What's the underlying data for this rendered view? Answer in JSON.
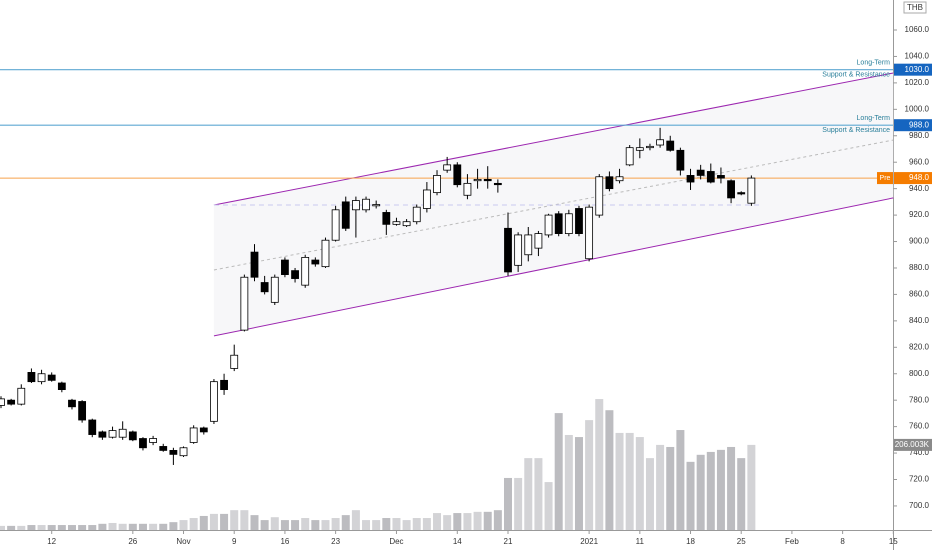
{
  "chart_data": {
    "type": "candlestick",
    "currency": "THB",
    "grid": false,
    "categories": [
      null,
      null,
      null,
      null,
      null,
      "12",
      null,
      null,
      null,
      null,
      null,
      null,
      null,
      "26",
      null,
      null,
      null,
      null,
      "Nov",
      null,
      null,
      null,
      null,
      "9",
      null,
      null,
      null,
      null,
      "16",
      null,
      null,
      null,
      null,
      "23",
      null,
      null,
      null,
      null,
      null,
      "Dec",
      null,
      null,
      null,
      null,
      null,
      "14",
      null,
      null,
      null,
      null,
      "21",
      null,
      null,
      null,
      null,
      null,
      null,
      null,
      "2021",
      null,
      null,
      null,
      null,
      "11",
      null,
      null,
      null,
      null,
      "18",
      null,
      null,
      null,
      null,
      "25",
      null,
      null,
      null,
      null,
      "Feb",
      null,
      null,
      null,
      null,
      "8",
      null,
      null,
      null,
      null,
      "15"
    ],
    "open": [
      776,
      780,
      777,
      801,
      794,
      799,
      793,
      780,
      779,
      765,
      756,
      752,
      752,
      756,
      751,
      748,
      745,
      742,
      738,
      748,
      759,
      764,
      795,
      804,
      833,
      892,
      869,
      854,
      886,
      878,
      867,
      886,
      881,
      901,
      930,
      924,
      924,
      927,
      922,
      913,
      912,
      915,
      925,
      937,
      954,
      958,
      935,
      946,
      947,
      944,
      910,
      882,
      890,
      895,
      905,
      921,
      906,
      925,
      887,
      920,
      949,
      946,
      958,
      969,
      971,
      973,
      976,
      969,
      950,
      954,
      953,
      950,
      946,
      937,
      929,
      null,
      null,
      null,
      null,
      null,
      null,
      null,
      null,
      null,
      null,
      null,
      null,
      null,
      null
    ],
    "high": [
      783,
      781,
      792,
      804,
      803,
      801,
      794,
      781,
      780,
      766,
      757,
      760,
      764,
      757,
      752,
      753,
      747,
      744,
      745,
      761,
      760,
      796,
      800,
      822,
      875,
      898,
      874,
      875,
      888,
      880,
      890,
      888,
      903,
      927,
      934,
      934,
      934,
      931,
      924,
      918,
      917,
      928,
      945,
      954,
      964,
      960,
      951,
      955,
      957,
      947,
      922,
      907,
      911,
      908,
      921,
      923,
      924,
      927,
      928,
      951,
      953,
      955,
      973,
      978,
      974,
      986,
      980,
      971,
      955,
      958,
      959,
      956,
      947,
      938,
      950,
      null,
      null,
      null,
      null,
      null,
      null,
      null,
      null,
      null,
      null,
      null,
      null,
      null,
      null
    ],
    "low": [
      774,
      776,
      776,
      793,
      792,
      794,
      786,
      773,
      763,
      752,
      750,
      751,
      750,
      749,
      742,
      746,
      741,
      731,
      737,
      747,
      754,
      762,
      784,
      802,
      832,
      870,
      860,
      852,
      873,
      869,
      865,
      881,
      880,
      900,
      908,
      903,
      922,
      925,
      905,
      912,
      911,
      913,
      922,
      935,
      952,
      941,
      932,
      940,
      940,
      937,
      874,
      877,
      885,
      889,
      903,
      904,
      904,
      904,
      885,
      918,
      938,
      944,
      957,
      963,
      969,
      971,
      968,
      950,
      939,
      947,
      944,
      944,
      929,
      935,
      927,
      null,
      null,
      null,
      null,
      null,
      null,
      null,
      null,
      null,
      null,
      null,
      null,
      null,
      null
    ],
    "close": [
      781,
      777,
      789,
      794,
      800,
      795,
      788,
      775,
      765,
      754,
      752,
      757,
      758,
      750,
      744,
      751,
      742,
      739,
      744,
      759,
      756,
      794,
      788,
      814,
      873,
      873,
      862,
      873,
      875,
      872,
      888,
      883,
      901,
      924,
      910,
      931,
      932,
      928,
      913,
      915,
      915,
      926,
      939,
      950,
      958,
      943,
      944,
      947,
      946,
      943,
      877,
      905,
      905,
      906,
      920,
      906,
      921,
      906,
      926,
      949,
      940,
      949,
      971,
      971,
      972,
      977,
      969,
      954,
      945,
      950,
      945,
      948,
      933,
      936,
      948,
      null,
      null,
      null,
      null,
      null,
      null,
      null,
      null,
      null,
      null,
      null,
      null,
      null,
      null
    ],
    "volume": [
      10,
      10,
      10,
      12,
      12,
      12,
      12,
      12,
      12,
      12,
      15,
      17,
      15,
      15,
      15,
      15,
      15,
      19,
      24,
      29,
      34,
      39,
      39,
      48,
      48,
      36,
      24,
      31,
      24,
      24,
      29,
      24,
      24,
      29,
      36,
      48,
      24,
      24,
      29,
      29,
      24,
      29,
      29,
      41,
      36,
      41,
      41,
      44,
      44,
      48,
      126,
      126,
      174,
      174,
      116,
      283,
      230,
      225,
      266,
      317,
      290,
      235,
      235,
      225,
      174,
      206,
      201,
      242,
      165,
      182,
      189,
      194,
      201,
      174,
      206.003,
      null,
      null,
      null,
      null,
      null,
      null,
      null,
      null,
      null,
      null,
      null,
      null,
      null,
      null
    ],
    "up_color": "#ffffff",
    "down_color": "#000000",
    "volume_up_color": "#d3d3d6",
    "volume_down_color": "#bcbcc0",
    "ylim": [
      681.8,
      1082.7
    ],
    "vlim": [
      0,
      1283
    ],
    "yticks": [
      {
        "value": 700,
        "label": "700.0"
      },
      {
        "value": 720,
        "label": "720.0"
      },
      {
        "value": 740,
        "label": "740.0"
      },
      {
        "value": 760,
        "label": "760.0"
      },
      {
        "value": 780,
        "label": "780.0"
      },
      {
        "value": 800,
        "label": "800.0"
      },
      {
        "value": 820,
        "label": "820.0"
      },
      {
        "value": 840,
        "label": "840.0"
      },
      {
        "value": 860,
        "label": "860.0"
      },
      {
        "value": 880,
        "label": "880.0"
      },
      {
        "value": 900,
        "label": "900.0"
      },
      {
        "value": 920,
        "label": "920.0"
      },
      {
        "value": 940,
        "label": "940.0"
      },
      {
        "value": 960,
        "label": "960.0"
      },
      {
        "value": 980,
        "label": "980.0"
      },
      {
        "value": 1000,
        "label": "1000.0"
      },
      {
        "value": 1020,
        "label": "1020.0"
      },
      {
        "value": 1040,
        "label": "1040.0"
      },
      {
        "value": 1060,
        "label": "1060.0"
      }
    ],
    "levels": [
      {
        "value": 1030,
        "label": "1030.0",
        "color": "#5fa8d3",
        "badge": "#1565c0",
        "text": [
          "Long-Term",
          "Support & Resistance"
        ]
      },
      {
        "value": 988,
        "label": "988.0",
        "color": "#5fa8d3",
        "badge": "#1565c0",
        "text": [
          "Long-Term",
          "Support & Resistance"
        ]
      }
    ],
    "price_line": {
      "value": 948,
      "label": "948.0",
      "tag": "Pre",
      "color": "#f7a24b",
      "badge": "#f57c00"
    },
    "volume_label": {
      "value": 206.003,
      "label": "206.003K",
      "color": "#8a8a8a"
    },
    "channel": {
      "x": [
        21,
        88
      ],
      "upper": [
        927.6,
        1027.5
      ],
      "lower": [
        828.6,
        933
      ],
      "mid": [
        878.5,
        976.8
      ],
      "base": 927.6,
      "base_end": 75,
      "color": "#9c27b0"
    }
  }
}
